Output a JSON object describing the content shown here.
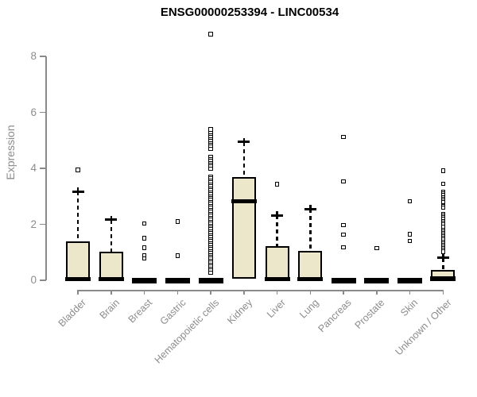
{
  "chart_data": {
    "type": "boxplot",
    "title": "ENSG00000253394 - LINC00534",
    "xlabel": "",
    "ylabel": "Expression",
    "ylim": [
      0,
      8.9
    ],
    "yticks": [
      0,
      2,
      4,
      6,
      8
    ],
    "grid": false,
    "legend": "none",
    "colors": {
      "box_fill": "#ECE7CB",
      "box_border": "#000000",
      "median": "#000000",
      "axis": "#8a8a8a",
      "tick_label": "#8c8c8c",
      "title": "#000000",
      "background": "#ffffff"
    },
    "categories": [
      "Bladder",
      "Brain",
      "Breast",
      "Gastric",
      "Hematopoietic cells",
      "Kidney",
      "Liver",
      "Lung",
      "Pancreas",
      "Prostate",
      "Skin",
      "Unknown / Other"
    ],
    "series": [
      {
        "category": "Bladder",
        "q1": 0,
        "median": 0.04,
        "q3": 1.4,
        "whisker_low": 0,
        "whisker_high": 3.17,
        "outliers": [
          3.94
        ]
      },
      {
        "category": "Brain",
        "q1": 0,
        "median": 0.04,
        "q3": 1.03,
        "whisker_low": 0,
        "whisker_high": 2.16,
        "outliers": []
      },
      {
        "category": "Breast",
        "q1": 0,
        "median": 0.02,
        "q3": 0.05,
        "whisker_low": 0,
        "whisker_high": 0.05,
        "outliers": [
          2.03,
          1.51,
          1.16,
          0.88,
          0.78
        ]
      },
      {
        "category": "Gastric",
        "q1": 0,
        "median": 0.02,
        "q3": 0.05,
        "whisker_low": 0,
        "whisker_high": 0.05,
        "outliers": [
          2.1,
          0.88
        ]
      },
      {
        "category": "Hematopoietic cells",
        "q1": 0,
        "median": 0.02,
        "q3": 0.05,
        "whisker_low": 0,
        "whisker_high": 0.05,
        "outliers": [
          8.8,
          5.39,
          5.25,
          5.18,
          5.11,
          5.04,
          4.97,
          4.9,
          4.83,
          4.76,
          4.7,
          4.4,
          4.33,
          4.26,
          4.19,
          4.12,
          4.05,
          3.98,
          3.7,
          3.63,
          3.56,
          3.49,
          3.42,
          3.35,
          3.28,
          3.21,
          3.14,
          3.07,
          3.0,
          2.93,
          2.86,
          2.79,
          2.72,
          2.65,
          2.58,
          2.51,
          2.44,
          2.37,
          2.3,
          2.23,
          2.16,
          2.09,
          2.02,
          1.95,
          1.88,
          1.81,
          1.74,
          1.67,
          1.6,
          1.53,
          1.46,
          1.39,
          1.32,
          1.25,
          1.18,
          1.11,
          1.04,
          0.97,
          0.9,
          0.83,
          0.76,
          0.69,
          0.62,
          0.55,
          0.48,
          0.41,
          0.34,
          0.27
        ]
      },
      {
        "category": "Kidney",
        "q1": 0.07,
        "median": 2.82,
        "q3": 3.7,
        "whisker_low": 0,
        "whisker_high": 4.94,
        "outliers": []
      },
      {
        "category": "Liver",
        "q1": 0,
        "median": 0.04,
        "q3": 1.22,
        "whisker_low": 0,
        "whisker_high": 2.32,
        "outliers": [
          3.43
        ]
      },
      {
        "category": "Lung",
        "q1": 0,
        "median": 0.04,
        "q3": 1.05,
        "whisker_low": 0,
        "whisker_high": 2.55,
        "outliers": []
      },
      {
        "category": "Pancreas",
        "q1": 0,
        "median": 0.02,
        "q3": 0.05,
        "whisker_low": 0,
        "whisker_high": 0.05,
        "outliers": [
          5.12,
          3.53,
          1.97,
          1.63,
          1.18
        ]
      },
      {
        "category": "Prostate",
        "q1": 0,
        "median": 0.02,
        "q3": 0.05,
        "whisker_low": 0,
        "whisker_high": 0.05,
        "outliers": [
          1.15
        ]
      },
      {
        "category": "Skin",
        "q1": 0,
        "median": 0.02,
        "q3": 0.05,
        "whisker_low": 0,
        "whisker_high": 0.05,
        "outliers": [
          2.82,
          1.65,
          1.4
        ]
      },
      {
        "category": "Unknown / Other",
        "q1": 0,
        "median": 0.05,
        "q3": 0.38,
        "whisker_low": 0,
        "whisker_high": 0.8,
        "outliers": [
          3.92,
          3.45,
          3.15,
          3.09,
          3.03,
          2.97,
          2.91,
          2.85,
          2.79,
          2.65,
          2.6,
          2.36,
          2.3,
          2.24,
          2.18,
          2.12,
          2.06,
          2.0,
          1.9,
          1.8,
          1.74,
          1.68,
          1.62,
          1.56,
          1.5,
          1.44,
          1.38,
          1.32,
          1.26,
          1.2,
          1.14,
          1.08,
          1.02
        ]
      }
    ]
  }
}
